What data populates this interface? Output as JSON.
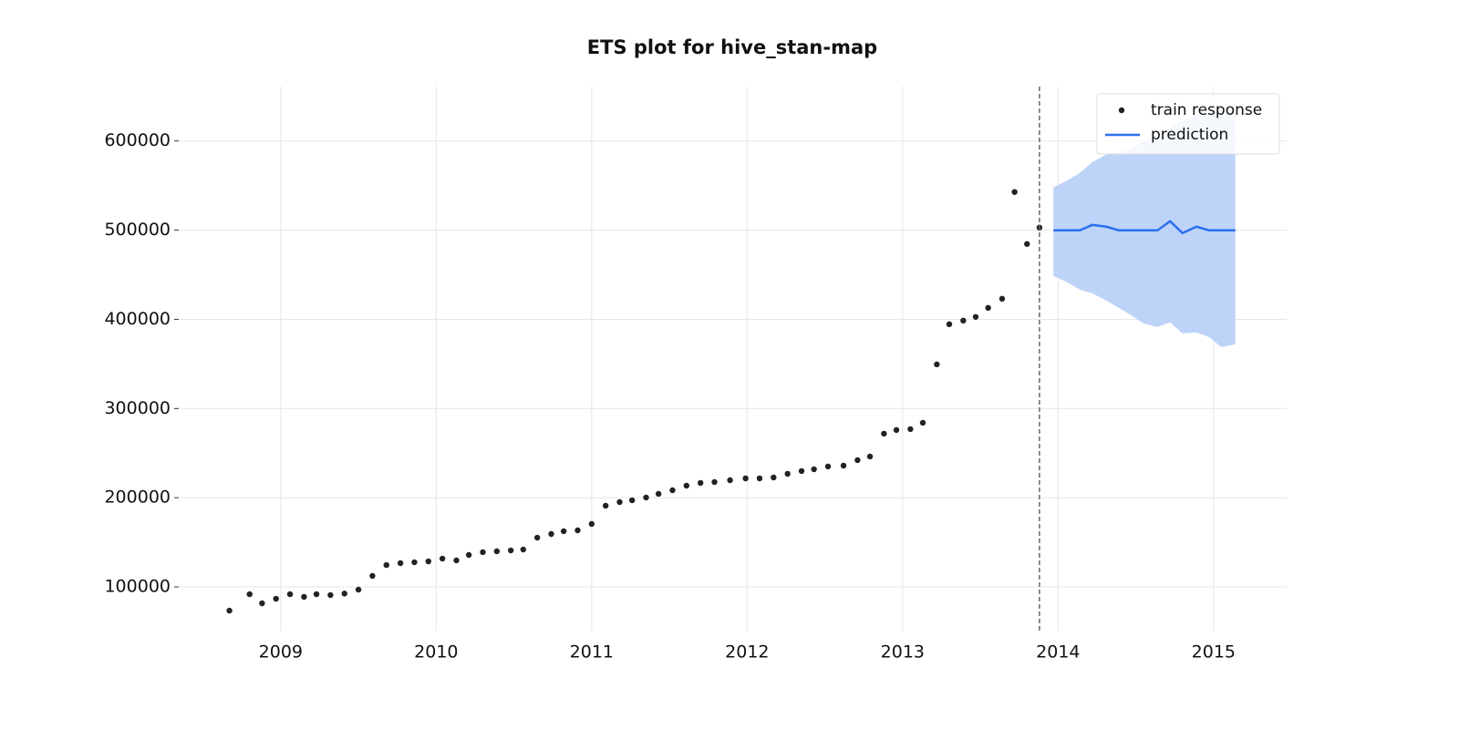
{
  "chart_data": {
    "type": "scatter",
    "title": "ETS plot for hive_stan-map",
    "xlim": [
      2008.35,
      2015.47
    ],
    "ylim": [
      51000,
      661000
    ],
    "xticks": [
      2009,
      2010,
      2011,
      2012,
      2013,
      2014,
      2015
    ],
    "yticks": [
      100000,
      200000,
      300000,
      400000,
      500000,
      600000
    ],
    "grid": true,
    "legend": "upper right",
    "vline": 2013.88,
    "series": [
      {
        "name": "train response",
        "type": "scatter",
        "color": "#222222",
        "x": [
          2008.67,
          2008.8,
          2008.88,
          2008.97,
          2009.06,
          2009.15,
          2009.23,
          2009.32,
          2009.41,
          2009.5,
          2009.59,
          2009.68,
          2009.77,
          2009.86,
          2009.95,
          2010.04,
          2010.13,
          2010.21,
          2010.3,
          2010.39,
          2010.48,
          2010.56,
          2010.65,
          2010.74,
          2010.82,
          2010.91,
          2011.0,
          2011.09,
          2011.18,
          2011.26,
          2011.35,
          2011.43,
          2011.52,
          2011.61,
          2011.7,
          2011.79,
          2011.89,
          2011.99,
          2012.08,
          2012.17,
          2012.26,
          2012.35,
          2012.43,
          2012.52,
          2012.62,
          2012.71,
          2012.79,
          2012.88,
          2012.96,
          2013.05,
          2013.13,
          2013.22,
          2013.3,
          2013.39,
          2013.47,
          2013.55,
          2013.64,
          2013.72,
          2013.8,
          2013.88
        ],
        "values": [
          73400,
          91800,
          81600,
          86700,
          91800,
          88800,
          91800,
          90800,
          92500,
          96900,
          112300,
          124500,
          126600,
          127600,
          128600,
          131700,
          129700,
          135800,
          138900,
          139900,
          140900,
          141900,
          155200,
          159300,
          162400,
          163400,
          170600,
          191000,
          195100,
          197100,
          200200,
          204300,
          208400,
          213500,
          216600,
          217600,
          219600,
          221700,
          221700,
          222700,
          226800,
          229900,
          231900,
          235000,
          236000,
          242100,
          246200,
          271800,
          275900,
          276900,
          284000,
          349500,
          394500,
          398600,
          402700,
          412900,
          423100,
          542800,
          484500,
          502900
        ]
      },
      {
        "name": "prediction",
        "type": "line",
        "color": "#2a6ff0",
        "band_color": "#bed3f8",
        "x": [
          2013.97,
          2014.06,
          2014.14,
          2014.22,
          2014.31,
          2014.39,
          2014.47,
          2014.55,
          2014.64,
          2014.72,
          2014.8,
          2014.89,
          2014.97,
          2015.05,
          2015.14
        ],
        "values": [
          499800,
          499800,
          499800,
          505900,
          503900,
          499800,
          499800,
          499800,
          499800,
          510000,
          496700,
          503900,
          499800,
          499800,
          499800
        ],
        "upper": [
          547900,
          556000,
          564200,
          576500,
          584700,
          586700,
          591800,
          600000,
          605100,
          615100,
          623500,
          628600,
          631700,
          631700,
          631700
        ],
        "lower": [
          448700,
          441500,
          433300,
          429200,
          421100,
          412900,
          404700,
          395500,
          391400,
          396500,
          384200,
          385300,
          380200,
          368900,
          372000
        ]
      }
    ]
  }
}
